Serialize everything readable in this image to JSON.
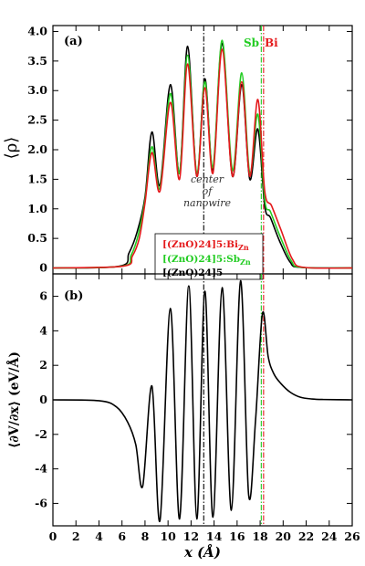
{
  "chart_data": [
    {
      "panel_label": "(a)",
      "type": "line",
      "ylabel": "⟨ρ⟩",
      "xlim": [
        0,
        26
      ],
      "ylim": [
        -0.1,
        4.1
      ],
      "yticks": [
        0,
        0.5,
        1.0,
        1.5,
        2.0,
        2.5,
        3.0,
        3.5,
        4.0
      ],
      "yticklabels": [
        "0",
        "0.5",
        "1.0",
        "1.5",
        "2.0",
        "2.5",
        "3.0",
        "3.5",
        "4.0"
      ],
      "annotation": "center\nof\nnanowire",
      "vlines": [
        {
          "x": 13.1,
          "color": "#000000",
          "style": "dashdot"
        },
        {
          "x": 18.1,
          "color": "#22cc22",
          "style": "dashdot",
          "label": "Sb"
        },
        {
          "x": 18.3,
          "color": "#e41a1c",
          "style": "dashdot",
          "label": "Bi"
        }
      ],
      "legend": {
        "placement": "lower-right",
        "entries": [
          {
            "base": "[(ZnO)24]5:Bi",
            "sub": "Zn",
            "color": "#e41a1c"
          },
          {
            "base": "[(ZnO)24]5:Sb",
            "sub": "Zn",
            "color": "#22cc22"
          },
          {
            "base": "[(ZnO)24]5",
            "sub": "",
            "color": "#000000"
          }
        ]
      },
      "series": [
        {
          "color": "#000000",
          "x": [
            0,
            5.8,
            6.6,
            7.3,
            8.0,
            8.6,
            9.3,
            10.2,
            11.0,
            11.7,
            12.5,
            13.2,
            13.9,
            14.7,
            15.6,
            16.4,
            17.1,
            17.8,
            18.4,
            18.9,
            19.7,
            20.6,
            21.5,
            26
          ],
          "y": [
            0,
            0.03,
            0.25,
            0.6,
            1.2,
            2.3,
            1.4,
            3.1,
            1.6,
            3.75,
            1.55,
            3.2,
            1.65,
            3.8,
            1.55,
            3.1,
            1.5,
            2.35,
            1.05,
            0.85,
            0.45,
            0.1,
            0.01,
            0
          ]
        },
        {
          "color": "#22cc22",
          "x": [
            0,
            6.0,
            6.8,
            7.4,
            8.0,
            8.6,
            9.3,
            10.2,
            11.0,
            11.7,
            12.5,
            13.2,
            13.9,
            14.7,
            15.6,
            16.4,
            17.1,
            17.8,
            18.4,
            18.9,
            19.7,
            20.7,
            21.6,
            26
          ],
          "y": [
            0,
            0.03,
            0.22,
            0.55,
            1.15,
            2.05,
            1.35,
            2.95,
            1.6,
            3.6,
            1.6,
            3.15,
            1.7,
            3.85,
            1.65,
            3.3,
            1.6,
            2.6,
            1.15,
            0.95,
            0.55,
            0.12,
            0.01,
            0
          ]
        },
        {
          "color": "#e41a1c",
          "x": [
            0,
            6.1,
            6.9,
            7.5,
            8.0,
            8.6,
            9.3,
            10.2,
            11.0,
            11.7,
            12.5,
            13.2,
            13.9,
            14.7,
            15.6,
            16.4,
            17.1,
            17.8,
            18.4,
            19.0,
            19.8,
            20.8,
            21.8,
            26
          ],
          "y": [
            0,
            0.03,
            0.2,
            0.5,
            1.1,
            1.95,
            1.3,
            2.8,
            1.5,
            3.45,
            1.55,
            3.05,
            1.6,
            3.7,
            1.55,
            3.15,
            1.55,
            2.85,
            1.3,
            1.05,
            0.65,
            0.15,
            0.01,
            0
          ]
        }
      ]
    },
    {
      "panel_label": "(b)",
      "type": "line",
      "ylabel": "⟨∂V/∂x⟩  (eV/Å)",
      "xlabel": "x (Å)",
      "xlim": [
        0,
        26
      ],
      "ylim": [
        -7.3,
        7.3
      ],
      "xticks": [
        0,
        2,
        4,
        6,
        8,
        10,
        12,
        14,
        16,
        18,
        20,
        22,
        24,
        26
      ],
      "yticks": [
        -6,
        -4,
        -2,
        0,
        2,
        4,
        6
      ],
      "vlines": [
        {
          "x": 13.1,
          "color": "#000000",
          "style": "dashdot"
        },
        {
          "x": 18.1,
          "color": "#22cc22",
          "style": "dashdot"
        },
        {
          "x": 18.3,
          "color": "#e41a1c",
          "style": "dashdot"
        }
      ],
      "series": [
        {
          "color": "#000000",
          "x": [
            0,
            4.0,
            5.5,
            6.5,
            7.2,
            7.8,
            8.6,
            9.3,
            10.2,
            11.0,
            11.8,
            12.5,
            13.2,
            13.9,
            14.7,
            15.5,
            16.3,
            17.0,
            17.6,
            18.2,
            18.7,
            19.2,
            19.8,
            20.6,
            21.5,
            22.5,
            23.5,
            26
          ],
          "y": [
            0,
            -0.05,
            -0.4,
            -1.3,
            -2.6,
            -5.0,
            0.8,
            -7.0,
            5.3,
            -6.9,
            6.6,
            -6.9,
            6.3,
            -6.8,
            6.5,
            -6.4,
            6.9,
            -5.5,
            -1.2,
            5.0,
            2.5,
            1.5,
            0.95,
            0.45,
            0.15,
            0.05,
            0.02,
            0
          ]
        }
      ]
    }
  ]
}
